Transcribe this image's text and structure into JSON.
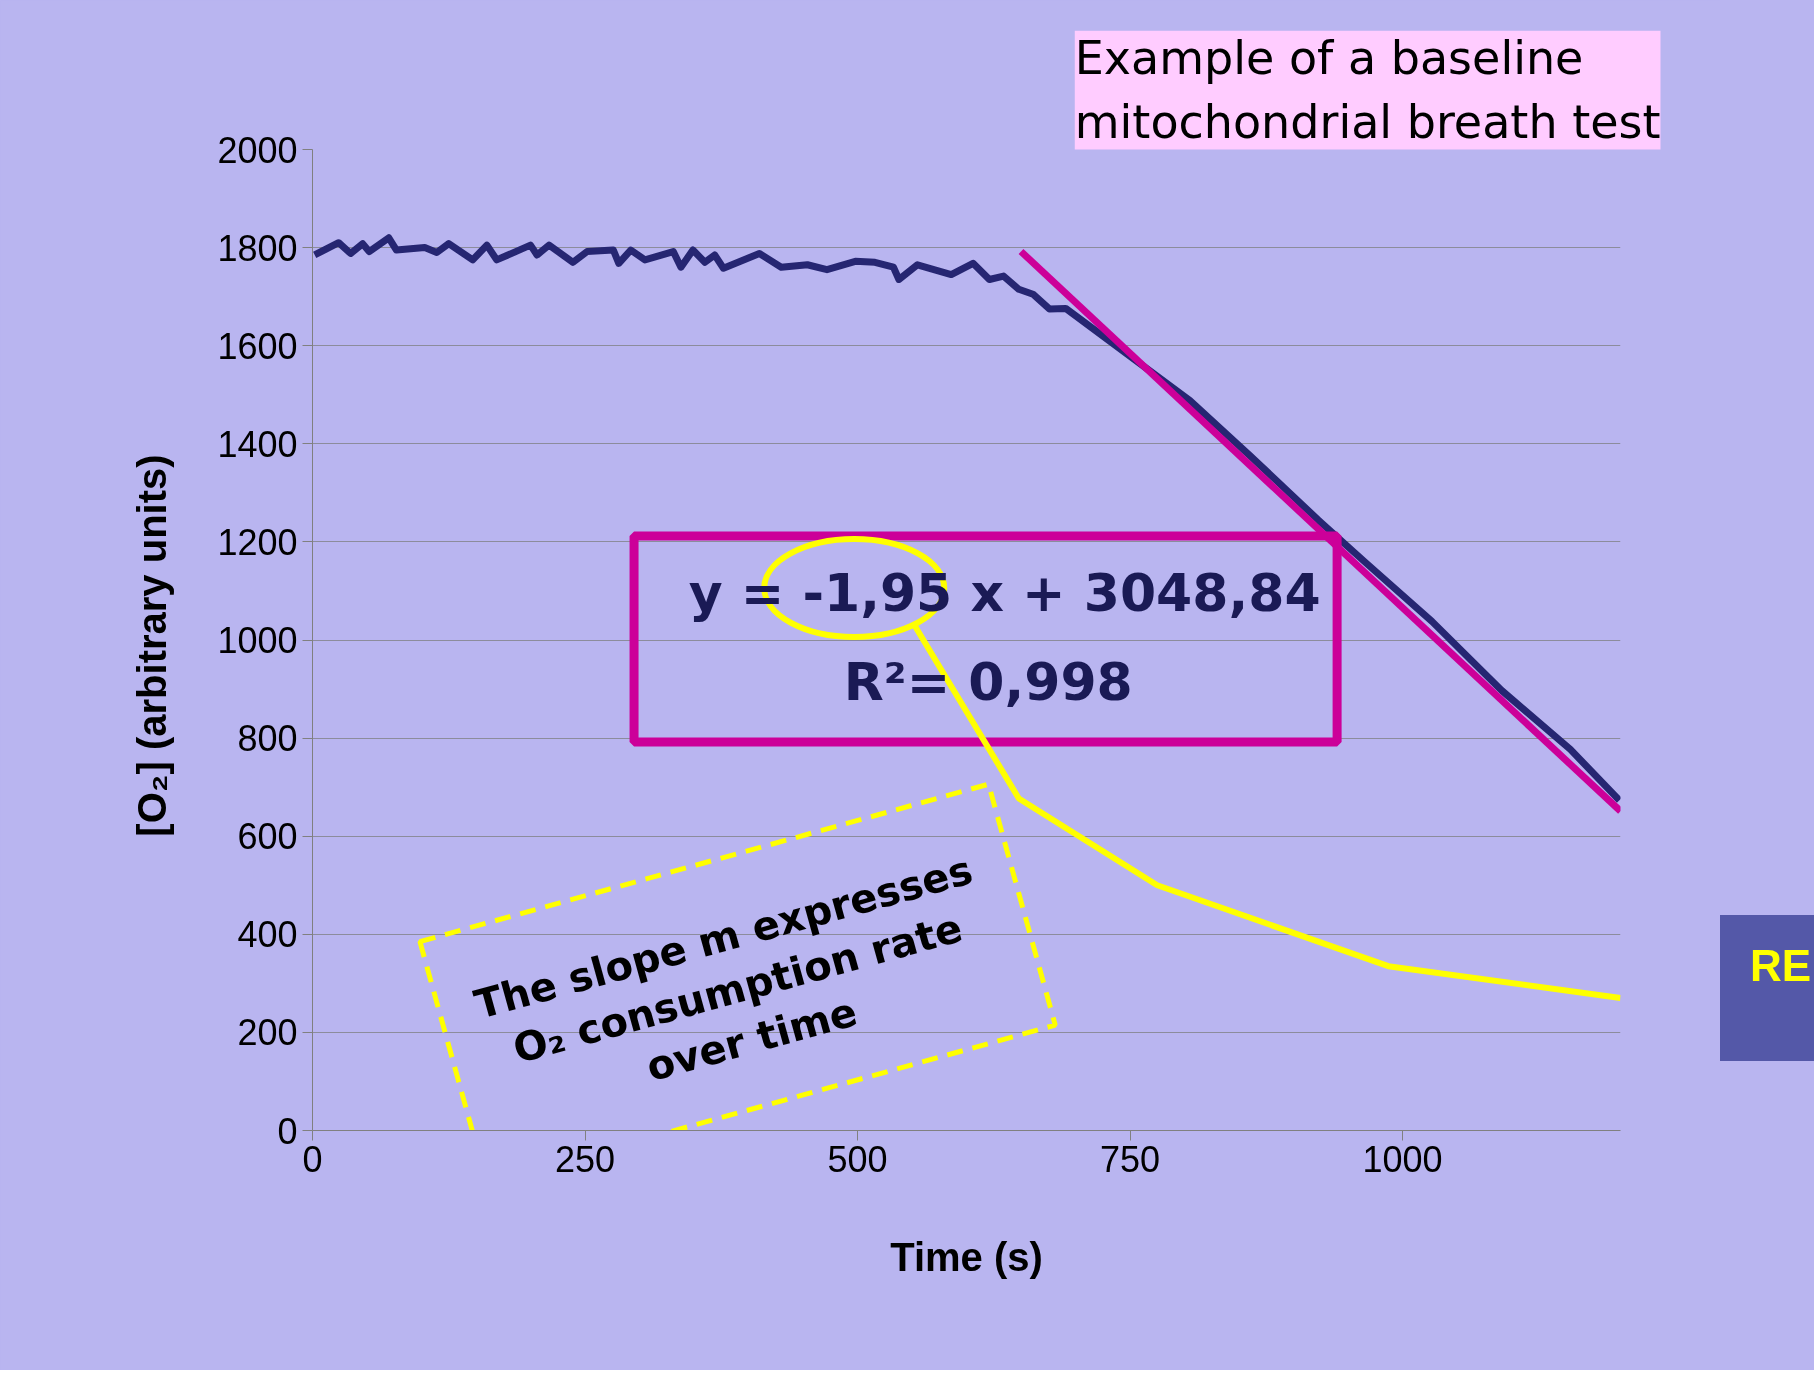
{
  "chart_data": {
    "type": "line",
    "title": "Example of a baseline mitochondrial breath test",
    "xlabel": "Time (s)",
    "ylabel": "[O₂]  (arbitrary units)",
    "xlim": [
      0,
      1200
    ],
    "ylim": [
      0,
      2000
    ],
    "xticks": [
      0,
      250,
      500,
      750,
      1000
    ],
    "yticks": [
      0,
      200,
      400,
      600,
      800,
      1000,
      1200,
      1400,
      1600,
      1800,
      2000
    ],
    "grid": "y",
    "marker": "none",
    "line_style": "solid",
    "series": [
      {
        "color": "#262672",
        "x": [
          2,
          24,
          35,
          46,
          52,
          70,
          77,
          103,
          114,
          125,
          147,
          160,
          169,
          200,
          206,
          217,
          239,
          252,
          276,
          281,
          292,
          305,
          331,
          338,
          349,
          360,
          369,
          377,
          410,
          430,
          454,
          472,
          498,
          516,
          533,
          538,
          555,
          586,
          606,
          621,
          634,
          648,
          661,
          676,
          691,
          754,
          805,
          860,
          923,
          965,
          1027,
          1091,
          1154,
          1199
        ],
        "values": [
          1785,
          1810,
          1788,
          1808,
          1792,
          1820,
          1795,
          1800,
          1790,
          1808,
          1775,
          1805,
          1775,
          1805,
          1785,
          1805,
          1770,
          1792,
          1795,
          1768,
          1795,
          1775,
          1792,
          1760,
          1795,
          1770,
          1785,
          1758,
          1788,
          1760,
          1765,
          1755,
          1772,
          1770,
          1760,
          1735,
          1765,
          1745,
          1768,
          1735,
          1742,
          1715,
          1705,
          1675,
          1676,
          1572,
          1488,
          1376,
          1244,
          1160,
          1038,
          897,
          777,
          673
        ]
      },
      {
        "type": "line",
        "color": "#cc0099",
        "x": [
          650,
          1200
        ],
        "values": [
          1792,
          651
        ]
      }
    ],
    "annotations": [
      "y = -1,95 x + 3048,84",
      "R²= 0,998",
      "The slope m expresses O₂ consumption rate over time",
      "RE"
    ]
  }
}
